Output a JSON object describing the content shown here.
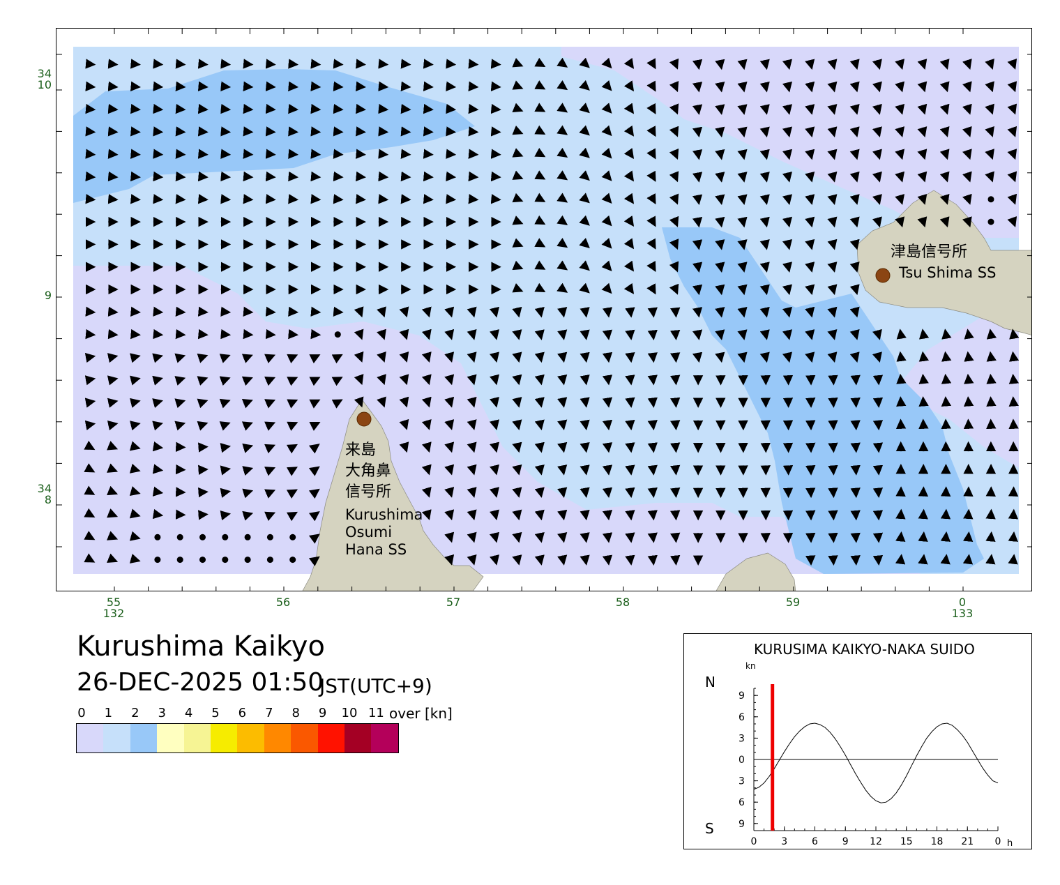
{
  "map": {
    "lon_ticks": [
      {
        "label": "55",
        "sub": "132"
      },
      {
        "label": "56",
        "sub": ""
      },
      {
        "label": "57",
        "sub": ""
      },
      {
        "label": "58",
        "sub": ""
      },
      {
        "label": "59",
        "sub": ""
      },
      {
        "label": "0",
        "sub": "133"
      }
    ],
    "lat_ticks": [
      {
        "label": "34",
        "sub": "10"
      },
      {
        "label": "9",
        "sub": ""
      },
      {
        "label": "34",
        "sub": "8"
      }
    ],
    "places": {
      "tsushima_jp": "津島信号所",
      "tsushima_en": "Tsu Shima SS",
      "kurushima_jp_1": "来島",
      "kurushima_jp_2": "大角鼻",
      "kurushima_jp_3": "信号所",
      "kurushima_en_1": "Kurushima",
      "kurushima_en_2": "Osumi",
      "kurushima_en_3": "Hana SS"
    },
    "colors": {
      "land": "#d5d3c0",
      "station": "#8b4513"
    }
  },
  "title": "Kurushima Kaikyo",
  "datetime": "26-DEC-2025 01:50",
  "timezone": "JST(UTC+9)",
  "legend": {
    "labels": [
      "0",
      "1",
      "2",
      "3",
      "4",
      "5",
      "6",
      "7",
      "8",
      "9",
      "10",
      "11"
    ],
    "over_unit": "over [kn]",
    "colors": [
      "#d8d8fa",
      "#c6e0fa",
      "#98c8f8",
      "#ffffc0",
      "#f6f494",
      "#f6ec00",
      "#fcbc00",
      "#ff8800",
      "#fa5800",
      "#ff1200",
      "#a40024",
      "#b4005a"
    ]
  },
  "chart_data": {
    "type": "line",
    "title": "KURUSIMA KAIKYO-NAKA SUIDO",
    "ylabel": "kn",
    "north_label": "N",
    "south_label": "S",
    "xlabel": "h",
    "xlim": [
      0,
      24
    ],
    "ylim": [
      -10,
      10
    ],
    "x_ticks": [
      "0",
      "3",
      "6",
      "9",
      "12",
      "15",
      "18",
      "21",
      "0"
    ],
    "y_ticks": [
      "9",
      "6",
      "3",
      "0",
      "3",
      "6",
      "9"
    ],
    "current_time_h": 1.83,
    "current_time_color": "#ee0000",
    "series": [
      {
        "x": [
          0,
          0.5,
          1,
          1.5,
          2,
          2.5,
          3,
          3.5,
          4,
          4.5,
          5,
          5.5,
          6,
          6.5,
          7,
          7.5,
          8,
          8.5,
          9,
          9.5,
          10,
          10.5,
          11,
          11.5,
          12,
          12.5,
          13,
          13.5,
          14,
          14.5,
          15,
          15.5,
          16,
          16.5,
          17,
          17.5,
          18,
          18.5,
          19,
          19.5,
          20,
          20.5,
          21,
          21.5,
          22,
          22.5,
          23,
          23.5,
          24
        ],
        "values": [
          -4.2,
          -3.9,
          -3.3,
          -2.4,
          -1.3,
          -0.1,
          1.1,
          2.2,
          3.2,
          4.0,
          4.6,
          5.0,
          5.1,
          4.9,
          4.5,
          3.8,
          2.9,
          1.8,
          0.6,
          -0.7,
          -2.0,
          -3.2,
          -4.3,
          -5.2,
          -5.8,
          -6.1,
          -6.0,
          -5.5,
          -4.7,
          -3.6,
          -2.3,
          -0.9,
          0.5,
          1.8,
          3.0,
          3.9,
          4.6,
          5.0,
          5.1,
          4.8,
          4.2,
          3.4,
          2.4,
          1.2,
          0.0,
          -1.2,
          -2.2,
          -3.0,
          -3.3
        ]
      }
    ]
  }
}
